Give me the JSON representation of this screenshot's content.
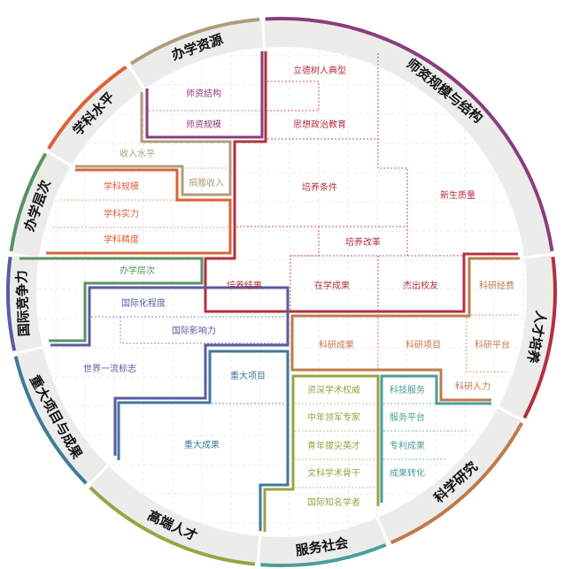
{
  "segments": [
    {
      "key": "faculty",
      "label": "师资规模与结构",
      "color": "#8a3d7c"
    },
    {
      "key": "talent",
      "label": "人才培养",
      "color": "#b3303f"
    },
    {
      "key": "research",
      "label": "科学研究",
      "color": "#c07a4a"
    },
    {
      "key": "service",
      "label": "服务社会",
      "color": "#4a9e9a"
    },
    {
      "key": "elite",
      "label": "高端人才",
      "color": "#9aa343"
    },
    {
      "key": "projects",
      "label": "重大项目与成果",
      "color": "#3f7a98"
    },
    {
      "key": "intl",
      "label": "国际竞争力",
      "color": "#5a5ba3"
    },
    {
      "key": "level",
      "label": "办学层次",
      "color": "#5a9162"
    },
    {
      "key": "discipline",
      "label": "学科水平",
      "color": "#db6139"
    },
    {
      "key": "resources",
      "label": "办学资源",
      "color": "#b09c7a"
    }
  ],
  "faculty": {
    "items": [
      "师资结构",
      "师资规模"
    ]
  },
  "resources": {
    "items": [
      "收入水平",
      "捐赠收入"
    ]
  },
  "discipline": {
    "items": [
      "学科规模",
      "学科实力",
      "学科精度"
    ]
  },
  "level": {
    "items": [
      "办学层次"
    ]
  },
  "talent": {
    "items": [
      "立德树人典型",
      "思想政治教育",
      "培养条件",
      "新生质量",
      "培养改革",
      "培养结果",
      "在学成果",
      "杰出校友"
    ]
  },
  "research": {
    "items": [
      "科研经费",
      "科研成果",
      "科研项目",
      "科研平台",
      "科研人力"
    ]
  },
  "intl": {
    "items": [
      "国际化程度",
      "国际影响力",
      "世界一流标志"
    ]
  },
  "projects": {
    "items": [
      "重大项目",
      "重大成果"
    ]
  },
  "elite": {
    "items": [
      "资深学术权威",
      "中年领军专家",
      "青年拔尖英才",
      "文科学术骨干",
      "国际知名学者"
    ]
  },
  "service": {
    "items": [
      "科技服务",
      "服务平台",
      "专利成果",
      "成果转化"
    ]
  }
}
